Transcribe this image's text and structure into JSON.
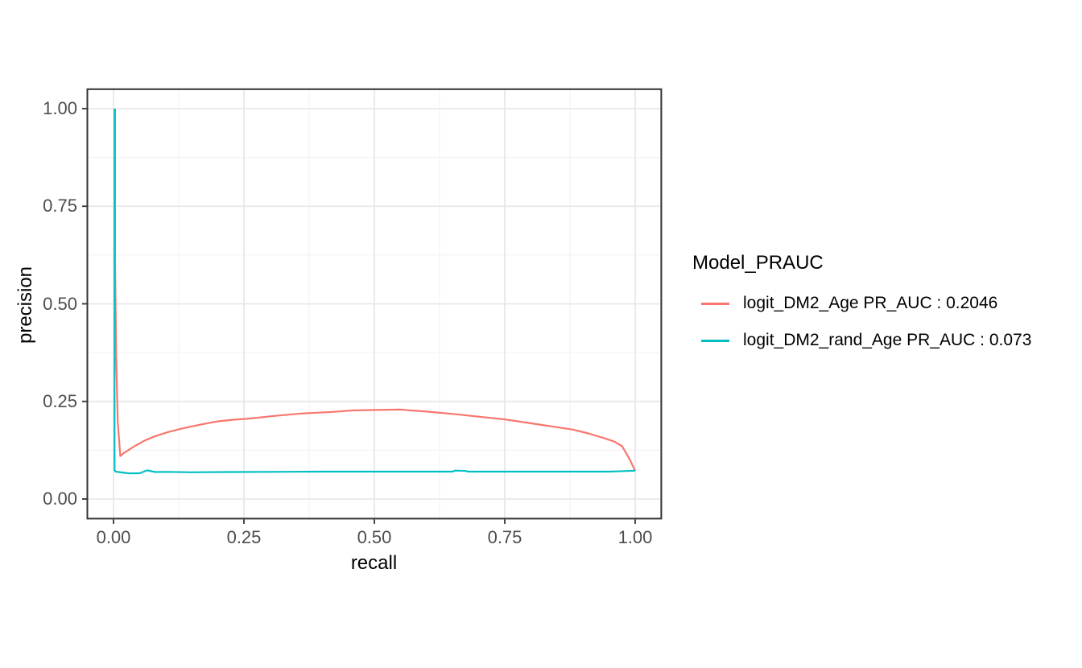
{
  "style": {
    "background": "#FFFFFF",
    "panel_border": "#333333",
    "grid_major": "#E8E8E8",
    "grid_minor": "#F0F0F0",
    "tick_color": "#333333",
    "tick_label_color": "#4D4D4D",
    "axis_title_color": "#000000",
    "legend_text_color": "#000000"
  },
  "chart_data": {
    "type": "line",
    "title": "",
    "xlabel": "recall",
    "ylabel": "precision",
    "xlim": [
      0,
      1
    ],
    "ylim": [
      0,
      1
    ],
    "grid": true,
    "x_ticks": {
      "values": [
        0,
        0.25,
        0.5,
        0.75,
        1
      ],
      "labels": [
        "0.00",
        "0.25",
        "0.50",
        "0.75",
        "1.00"
      ]
    },
    "y_ticks": {
      "values": [
        0,
        0.25,
        0.5,
        0.75,
        1
      ],
      "labels": [
        "0.00",
        "0.25",
        "0.50",
        "0.75",
        "1.00"
      ]
    },
    "x_minor_ticks": [
      0.125,
      0.375,
      0.625,
      0.875
    ],
    "y_minor_ticks": [
      0.125,
      0.375,
      0.625,
      0.875
    ],
    "legend": {
      "title": "Model_PRAUC",
      "position": "right"
    },
    "series": [
      {
        "name": "logit_DM2_Age PR_AUC : 0.2046",
        "model": "logit_DM2_Age",
        "pr_auc": 0.2046,
        "color": "#F8766D",
        "x": [
          0.003,
          0.003,
          0.005,
          0.008,
          0.013,
          0.02,
          0.04,
          0.06,
          0.08,
          0.106,
          0.13,
          0.15,
          0.18,
          0.2,
          0.23,
          0.26,
          0.31,
          0.36,
          0.42,
          0.46,
          0.5,
          0.55,
          0.6,
          0.65,
          0.7,
          0.75,
          0.78,
          0.82,
          0.85,
          0.88,
          0.91,
          0.94,
          0.96,
          0.975,
          0.985,
          0.992,
          0.997,
          1.0
        ],
        "y": [
          1.0,
          0.62,
          0.38,
          0.2,
          0.11,
          0.118,
          0.135,
          0.15,
          0.161,
          0.172,
          0.18,
          0.186,
          0.194,
          0.199,
          0.203,
          0.206,
          0.213,
          0.219,
          0.223,
          0.227,
          0.228,
          0.229,
          0.224,
          0.218,
          0.211,
          0.204,
          0.198,
          0.19,
          0.184,
          0.178,
          0.168,
          0.156,
          0.147,
          0.135,
          0.112,
          0.095,
          0.08,
          0.072
        ]
      },
      {
        "name": "logit_DM2_rand_Age PR_AUC : 0.073",
        "model": "logit_DM2_rand_Age",
        "pr_auc": 0.073,
        "color": "#00BFC4",
        "x": [
          0.002,
          0.002,
          0.004,
          0.008,
          0.015,
          0.03,
          0.05,
          0.065,
          0.08,
          0.1,
          0.15,
          0.22,
          0.3,
          0.4,
          0.5,
          0.6,
          0.65,
          0.655,
          0.675,
          0.68,
          0.75,
          0.85,
          0.95,
          1.0
        ],
        "y": [
          1.0,
          0.074,
          0.07,
          0.0695,
          0.068,
          0.0655,
          0.066,
          0.0735,
          0.069,
          0.0695,
          0.0685,
          0.069,
          0.0695,
          0.07,
          0.07,
          0.07,
          0.07,
          0.0728,
          0.0718,
          0.07,
          0.07,
          0.07,
          0.07,
          0.0725
        ]
      }
    ]
  }
}
